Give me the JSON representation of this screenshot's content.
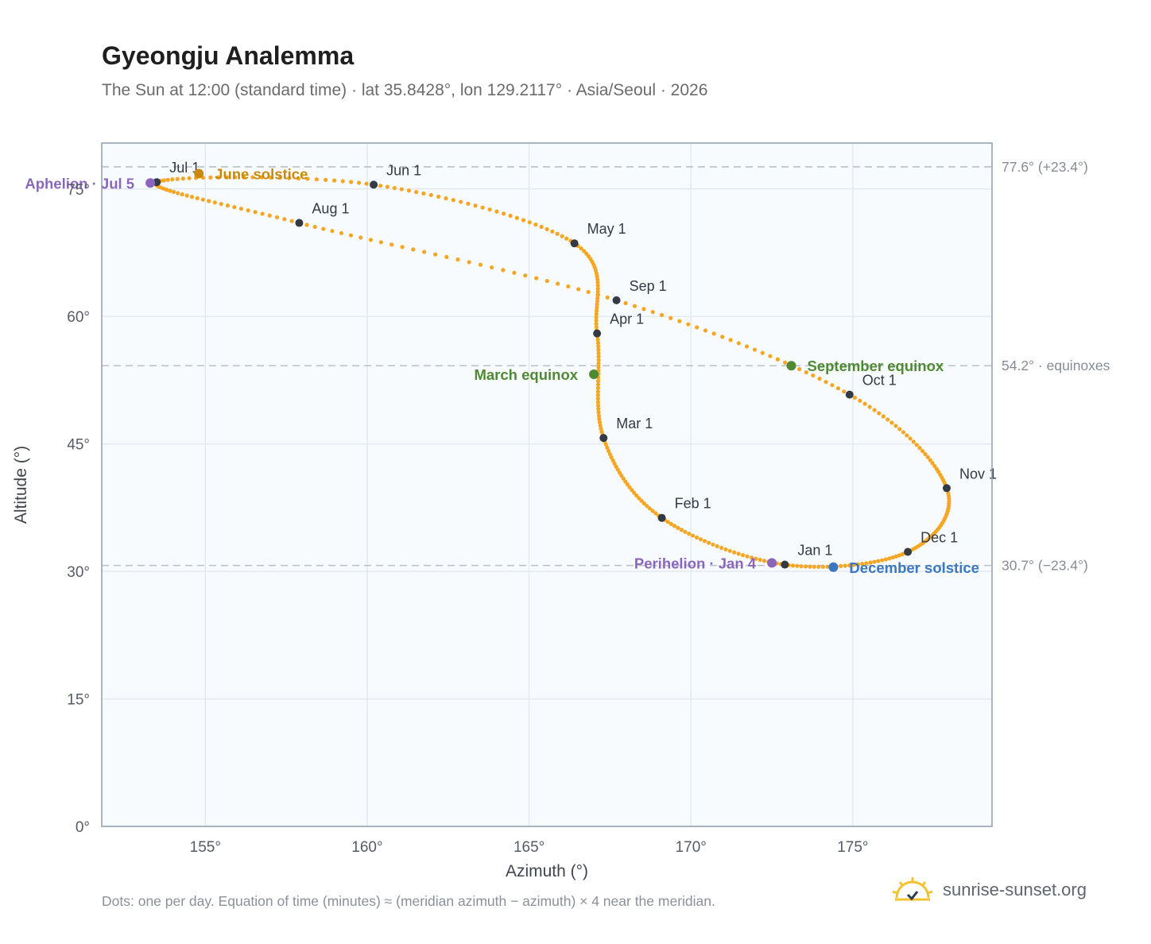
{
  "title": "Gyeongju Analemma",
  "subtitle": "The Sun at 12:00 (standard time) · lat 35.8428°, lon 129.2117° · Asia/Seoul · 2026",
  "footnote": "Dots: one per day. Equation of time (minutes) ≈ (meridian azimuth − azimuth) × 4 near the meridian.",
  "brand": "sunrise-sunset.org",
  "colors": {
    "curve": "#f5a623",
    "month_marker": "#333a44",
    "june_solstice": "#c98a0c",
    "equinox": "#4e8a32",
    "december_solstice": "#3a78c2",
    "aphelion_perihelion": "#8a67bd",
    "reference_line": "#b9c0c8",
    "plot_background": "#f8fbfe",
    "plot_border": "#98a3b3"
  },
  "chart_data": {
    "type": "scatter",
    "xlabel": "Azimuth (°)",
    "ylabel": "Altitude (°)",
    "xlim": [
      151.8,
      179.3
    ],
    "ylim": [
      0,
      80.4
    ],
    "x_ticks": [
      155,
      160,
      165,
      170,
      175
    ],
    "x_tick_labels": [
      "155°",
      "160°",
      "165°",
      "170°",
      "175°"
    ],
    "y_ticks": [
      0,
      15,
      30,
      45,
      60,
      75
    ],
    "y_tick_labels": [
      "0°",
      "15°",
      "30°",
      "45°",
      "60°",
      "75°"
    ],
    "grid": true,
    "daily_series_note": "one dot per day; interpolated through the monthly positions below",
    "monthly_positions": [
      {
        "label": "Jan 1",
        "day": 1,
        "azimuth": 172.9,
        "altitude": 30.8
      },
      {
        "label": "Feb 1",
        "day": 32,
        "azimuth": 169.1,
        "altitude": 36.3
      },
      {
        "label": "Mar 1",
        "day": 60,
        "azimuth": 167.3,
        "altitude": 45.7
      },
      {
        "label": "Apr 1",
        "day": 91,
        "azimuth": 167.1,
        "altitude": 58.0
      },
      {
        "label": "May 1",
        "day": 121,
        "azimuth": 166.4,
        "altitude": 68.6
      },
      {
        "label": "Jun 1",
        "day": 152,
        "azimuth": 160.2,
        "altitude": 75.5
      },
      {
        "label": "Jul 1",
        "day": 182,
        "azimuth": 153.5,
        "altitude": 75.8
      },
      {
        "label": "Aug 1",
        "day": 213,
        "azimuth": 157.9,
        "altitude": 71.0
      },
      {
        "label": "Sep 1",
        "day": 244,
        "azimuth": 167.7,
        "altitude": 61.9
      },
      {
        "label": "Oct 1",
        "day": 274,
        "azimuth": 174.9,
        "altitude": 50.8
      },
      {
        "label": "Nov 1",
        "day": 305,
        "azimuth": 177.9,
        "altitude": 39.8
      },
      {
        "label": "Dec 1",
        "day": 335,
        "azimuth": 176.7,
        "altitude": 32.3
      }
    ],
    "events": [
      {
        "label": "Perihelion · Jan 4",
        "kind": "aphelion_perihelion",
        "azimuth": 172.5,
        "altitude": 31.0
      },
      {
        "label": "March equinox",
        "kind": "equinox",
        "azimuth": 167.0,
        "altitude": 53.2
      },
      {
        "label": "June solstice",
        "kind": "june_solstice",
        "azimuth": 154.8,
        "altitude": 76.8
      },
      {
        "label": "Aphelion · Jul 5",
        "kind": "aphelion_perihelion",
        "azimuth": 153.3,
        "altitude": 75.7
      },
      {
        "label": "September equinox",
        "kind": "equinox",
        "azimuth": 173.1,
        "altitude": 54.2
      },
      {
        "label": "December solstice",
        "kind": "december_solstice",
        "azimuth": 174.4,
        "altitude": 30.5
      }
    ],
    "reference_lines": [
      {
        "altitude": 77.6,
        "label": "77.6° (+23.4°)"
      },
      {
        "altitude": 54.2,
        "label": "54.2° · equinoxes"
      },
      {
        "altitude": 30.7,
        "label": "30.7° (−23.4°)"
      }
    ]
  }
}
